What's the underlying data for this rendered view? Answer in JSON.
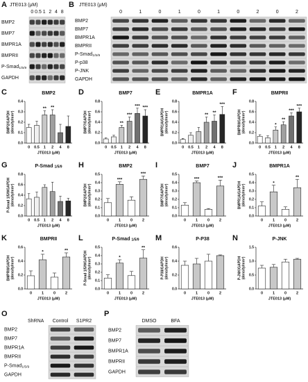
{
  "blots": {
    "A": {
      "letter": "A",
      "header": "JTE013 (μM)",
      "lanes": [
        "0",
        "0.5",
        "1",
        "2",
        "4",
        "8"
      ],
      "rows": [
        "BMP2",
        "BMP7",
        "BMPR1A",
        "BMPRII",
        {
          "text": "P-Smad",
          "sub": "1/5/9"
        },
        "GAPDH"
      ]
    },
    "B": {
      "letter": "B",
      "header": "JTE013 (μM)",
      "lanes": [
        "0",
        "1",
        "0",
        "1",
        "0",
        "1",
        "0",
        "2",
        "0",
        "2"
      ],
      "rows": [
        "BMP2",
        "BMP7",
        "BMPR1A",
        "BMPRII",
        {
          "text": "P-Smad",
          "sub": "1/5/9"
        },
        "P-p38",
        "P-JNK",
        "GAPDH"
      ]
    },
    "O": {
      "letter": "O",
      "header": "ShRNA",
      "lanes": [
        "Control",
        "S1PR2"
      ],
      "rows": [
        "BMP2",
        "BMP7",
        "BMPR1A",
        "BMPRII",
        {
          "text": "P-Smad",
          "sub": "1/5/9"
        },
        "GAPDH"
      ]
    },
    "P": {
      "letter": "P",
      "lanes": [
        "DMSO",
        "BFA"
      ],
      "rows": [
        "BMP2",
        "BMP7",
        "BMPR1A",
        "BMPRII",
        "GAPDH"
      ]
    }
  },
  "chart_data": [
    {
      "type": "bar",
      "panel": "C",
      "title": "BMP2",
      "ylabel": [
        "BMP2/GAPDH",
        "(density/mm²)"
      ],
      "xlabel": "JTE013 (μM)",
      "categories": [
        "0",
        "0.5",
        "1",
        "2",
        "4",
        "8"
      ],
      "values": [
        0.15,
        0.17,
        0.27,
        0.27,
        0.1,
        0.16
      ],
      "errors": [
        0.03,
        0.04,
        0.04,
        0.05,
        0.08,
        0.1
      ],
      "annotations": [
        null,
        null,
        "**",
        "**",
        null,
        null
      ],
      "colors": [
        "#ffffff",
        "#f0f0f0",
        "#c8c8c8",
        "#a0a0a0",
        "#707070",
        "#262626"
      ],
      "ylim": [
        0,
        0.4
      ],
      "yticks": [
        {
          "value": 0,
          "label": "0.0"
        },
        0.1,
        0.2,
        0.3,
        0.4
      ]
    },
    {
      "type": "bar",
      "panel": "D",
      "title": "BMP7",
      "ylabel": [
        "BMP7/GAPDH",
        "(density/mm²)"
      ],
      "xlabel": "JTE013 (μM)",
      "categories": [
        "0",
        "0.5",
        "1",
        "2",
        "4",
        "8"
      ],
      "values": [
        0.08,
        0.12,
        0.3,
        0.42,
        0.57,
        0.52
      ],
      "errors": [
        0.02,
        0.03,
        0.04,
        0.08,
        0.1,
        0.12
      ],
      "annotations": [
        null,
        null,
        "**",
        "***",
        "***",
        "***"
      ],
      "colors": [
        "#ffffff",
        "#f0f0f0",
        "#c8c8c8",
        "#a0a0a0",
        "#707070",
        "#262626"
      ],
      "ylim": [
        0,
        0.8
      ],
      "yticks": [
        {
          "value": 0,
          "label": "0.0"
        },
        0.2,
        0.4,
        0.6,
        0.8
      ]
    },
    {
      "type": "bar",
      "panel": "E",
      "title": "BMPR1A",
      "ylabel": [
        "BMPR1A/GAPDH",
        "(density/mm²)"
      ],
      "xlabel": "JTE013 (μM)",
      "categories": [
        "0",
        "0.5",
        "1",
        "2",
        "4",
        "8"
      ],
      "values": [
        0.07,
        0.15,
        0.22,
        0.4,
        0.42,
        0.55
      ],
      "errors": [
        0.02,
        0.05,
        0.08,
        0.1,
        0.12,
        0.15
      ],
      "annotations": [
        null,
        null,
        null,
        "**",
        "**",
        "***"
      ],
      "colors": [
        "#ffffff",
        "#f0f0f0",
        "#c8c8c8",
        "#a0a0a0",
        "#707070",
        "#262626"
      ],
      "ylim": [
        0,
        0.8
      ],
      "yticks": [
        {
          "value": 0,
          "label": "0.0"
        },
        0.2,
        0.4,
        0.6,
        0.8
      ]
    },
    {
      "type": "bar",
      "panel": "F",
      "title": "BMPRII",
      "ylabel": [
        "BMPRII/GAPDH",
        "(density/mm²)"
      ],
      "xlabel": "JTE013 (μM)",
      "categories": [
        "0",
        "0.5",
        "1",
        "2",
        "4",
        "8"
      ],
      "values": [
        0.13,
        0.1,
        0.25,
        0.35,
        0.52,
        0.6
      ],
      "errors": [
        0.03,
        0.04,
        0.06,
        0.06,
        0.06,
        0.07
      ],
      "annotations": [
        null,
        null,
        "*",
        "**",
        "***",
        "***"
      ],
      "colors": [
        "#ffffff",
        "#f0f0f0",
        "#c8c8c8",
        "#a0a0a0",
        "#707070",
        "#262626"
      ],
      "ylim": [
        0,
        0.8
      ],
      "yticks": [
        {
          "value": 0,
          "label": "0.0"
        },
        0.2,
        0.4,
        0.6,
        0.8
      ]
    },
    {
      "type": "bar",
      "panel": "G",
      "title": "P-Smad",
      "title_sub": "1/5/9",
      "ylabel": [
        "P-Smad 1/5/9/GAPDH",
        "(density/mm²)"
      ],
      "xlabel": "JTE013 (μM)",
      "categories": [
        "0",
        "0.5",
        "1",
        "2",
        "4",
        "8"
      ],
      "values": [
        0.33,
        0.36,
        0.55,
        0.47,
        0.28,
        0.29
      ],
      "errors": [
        0.1,
        0.1,
        0.05,
        0.18,
        0.1,
        0.05
      ],
      "annotations": [
        null,
        null,
        null,
        null,
        null,
        null
      ],
      "colors": [
        "#ffffff",
        "#f0f0f0",
        "#c8c8c8",
        "#a0a0a0",
        "#707070",
        "#262626"
      ],
      "ylim": [
        0,
        0.8
      ],
      "yticks": [
        {
          "value": 0,
          "label": "0.0"
        },
        0.2,
        0.4,
        0.6,
        0.8
      ]
    },
    {
      "type": "bar",
      "panel": "H",
      "title": "BMP2",
      "ylabel": [
        "BMP2/GAPDH",
        "(density/mm²)"
      ],
      "xlabel": "JTE013 (μM)",
      "categories": [
        "0",
        "1",
        "0",
        "2"
      ],
      "values": [
        0.16,
        0.38,
        0.19,
        0.44
      ],
      "errors": [
        0.05,
        0.03,
        0.04,
        0.04
      ],
      "annotations": [
        null,
        "***",
        null,
        "***"
      ],
      "colors": [
        "#ffffff",
        "#c8c8c8",
        "#ffffff",
        "#c8c8c8"
      ],
      "ylim": [
        0,
        0.5
      ],
      "yticks": [
        {
          "value": 0,
          "label": "0.0"
        },
        0.1,
        0.2,
        0.3,
        0.4,
        0.5
      ]
    },
    {
      "type": "bar",
      "panel": "I",
      "title": "BMP7",
      "ylabel": [
        "BMP7/GAPDH",
        "(density/mm²)"
      ],
      "xlabel": "JTE013 (μM)",
      "categories": [
        "0",
        "1",
        "0",
        "2"
      ],
      "values": [
        0.13,
        0.4,
        0.08,
        0.36
      ],
      "errors": [
        0.03,
        0.02,
        0.01,
        0.07
      ],
      "annotations": [
        null,
        "***",
        null,
        "***"
      ],
      "colors": [
        "#ffffff",
        "#c8c8c8",
        "#ffffff",
        "#c8c8c8"
      ],
      "ylim": [
        0,
        0.5
      ],
      "yticks": [
        {
          "value": 0,
          "label": "0.0"
        },
        0.1,
        0.2,
        0.3,
        0.4,
        0.5
      ]
    },
    {
      "type": "bar",
      "panel": "J",
      "title": "BMPR1A",
      "ylabel": [
        "BMPR1A/GAPDH",
        "(density/mm²)"
      ],
      "xlabel": "JTE013 (μM)",
      "categories": [
        "0",
        "1",
        "0",
        "2"
      ],
      "values": [
        0.12,
        0.29,
        0.08,
        0.34
      ],
      "errors": [
        0.05,
        0.08,
        0.03,
        0.1
      ],
      "annotations": [
        null,
        "*",
        null,
        "**"
      ],
      "colors": [
        "#ffffff",
        "#c8c8c8",
        "#ffffff",
        "#c8c8c8"
      ],
      "ylim": [
        0,
        0.5
      ],
      "yticks": [
        {
          "value": 0,
          "label": "0.0"
        },
        0.1,
        0.2,
        0.3,
        0.4,
        0.5
      ]
    },
    {
      "type": "bar",
      "panel": "K",
      "title": "BMPRII",
      "ylabel": [
        "BMPRII/GAPDH",
        "(density/mm²)"
      ],
      "xlabel": "JTE013 (μM)",
      "categories": [
        "0",
        "1",
        "0",
        "2"
      ],
      "values": [
        0.19,
        0.42,
        0.17,
        0.46
      ],
      "errors": [
        0.07,
        0.08,
        0.06,
        0.06
      ],
      "annotations": [
        null,
        "*",
        null,
        "**"
      ],
      "colors": [
        "#ffffff",
        "#c8c8c8",
        "#ffffff",
        "#c8c8c8"
      ],
      "ylim": [
        0,
        0.6
      ],
      "yticks": [
        {
          "value": 0,
          "label": "0.0"
        },
        0.2,
        0.4,
        0.6
      ]
    },
    {
      "type": "bar",
      "panel": "L",
      "title": "P-Smad",
      "title_sub": "1/5/9",
      "ylabel": [
        "P-Smad 1/5/9/GAPDH",
        "(density/mm²)"
      ],
      "xlabel": "JTE013 (μM)",
      "categories": [
        "0",
        "1",
        "0",
        "2"
      ],
      "values": [
        0.13,
        0.31,
        0.16,
        0.37
      ],
      "errors": [
        0.04,
        0.04,
        0.05,
        0.1
      ],
      "annotations": [
        null,
        "*",
        null,
        "**"
      ],
      "colors": [
        "#ffffff",
        "#c8c8c8",
        "#ffffff",
        "#c8c8c8"
      ],
      "ylim": [
        0,
        0.5
      ],
      "yticks": [
        {
          "value": 0,
          "label": "0.0"
        },
        0.1,
        0.2,
        0.3,
        0.4,
        0.5
      ]
    },
    {
      "type": "bar",
      "panel": "M",
      "title": "P-P38",
      "ylabel": [
        "P-P38/GAPDH",
        "(density/mm²)"
      ],
      "xlabel": "JTE013 (μM)",
      "categories": [
        "0",
        "1",
        "0",
        "2"
      ],
      "values": [
        0.34,
        0.36,
        0.4,
        0.48
      ],
      "errors": [
        0.06,
        0.08,
        0.1,
        0.01
      ],
      "annotations": [
        null,
        null,
        null,
        null
      ],
      "colors": [
        "#ffffff",
        "#c8c8c8",
        "#ffffff",
        "#c8c8c8"
      ],
      "ylim": [
        0,
        0.6
      ],
      "yticks": [
        {
          "value": 0,
          "label": "0.0"
        },
        0.2,
        0.4,
        0.6
      ]
    },
    {
      "type": "bar",
      "panel": "N",
      "title": "P-JNK",
      "ylabel": [
        "P-JNK/GAPDH",
        "(density/mm²)"
      ],
      "xlabel": "JTE013 (μM)",
      "categories": [
        "0",
        "1",
        "0",
        "2"
      ],
      "values": [
        0.75,
        0.78,
        0.97,
        1.07
      ],
      "errors": [
        0.1,
        0.1,
        0.1,
        0.03
      ],
      "annotations": [
        null,
        null,
        null,
        null
      ],
      "colors": [
        "#ffffff",
        "#c8c8c8",
        "#ffffff",
        "#c8c8c8"
      ],
      "ylim": [
        0,
        1.5
      ],
      "yticks": [
        {
          "value": 0,
          "label": "0.0"
        },
        0.5,
        {
          "value": 1,
          "label": "1.0"
        },
        1.5
      ]
    }
  ]
}
